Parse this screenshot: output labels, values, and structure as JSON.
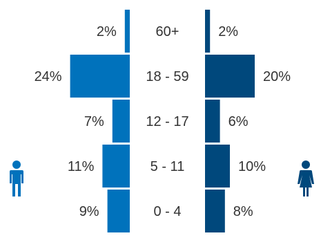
{
  "chart_data": {
    "type": "bar",
    "orientation": "horizontal",
    "layout": "population-pyramid",
    "title": "",
    "categories": [
      "60+",
      "18 - 59",
      "12 - 17",
      "5 - 11",
      "0 - 4"
    ],
    "series": [
      {
        "values": [
          2,
          24,
          7,
          11,
          9
        ],
        "labels": [
          "2%",
          "24%",
          "7%",
          "11%",
          "9%"
        ],
        "color": "#0072bc",
        "side": "left",
        "icon": "male-person-icon"
      },
      {
        "values": [
          2,
          20,
          6,
          10,
          8
        ],
        "labels": [
          "2%",
          "20%",
          "6%",
          "10%",
          "8%"
        ],
        "color": "#00487c",
        "side": "right",
        "icon": "female-person-icon"
      }
    ],
    "unit": "%",
    "grid": false,
    "legend": "icons"
  }
}
